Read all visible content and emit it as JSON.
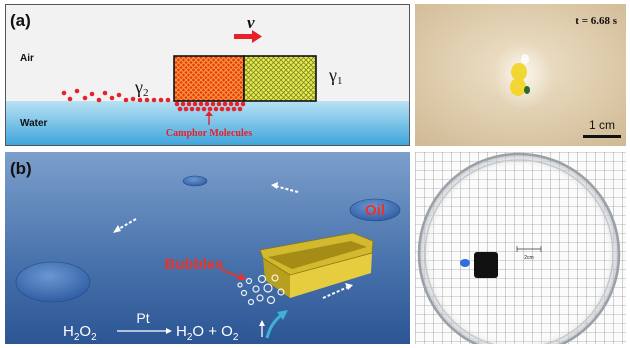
{
  "panel_a": {
    "label": "(a)",
    "velocity_symbol": "v",
    "air_label": "Air",
    "water_label": "Water",
    "gamma_left": "γ",
    "gamma_left_sub": "2",
    "gamma_right": "γ",
    "gamma_right_sub": "1",
    "camphor_label": "Camphor Molecules",
    "colors": {
      "water": "#7fc6e8",
      "red_block": "#e8331a",
      "yellow_block": "#e6e84a",
      "dots": "#e8202a"
    }
  },
  "panel_a_photo": {
    "time_label": "t = 6.68 s",
    "scale_label": "1 cm"
  },
  "panel_b": {
    "label": "(b)",
    "bubbles_label": "Bubbles",
    "oil_label": "Oil",
    "equation": {
      "h2o2_h": "H",
      "h2o2_sub1": "2",
      "h2o2_o": "O",
      "h2o2_sub2": "2",
      "catalyst": "Pt",
      "h2o_h": "H",
      "h2o_sub": "2",
      "h2o_o": "O + O",
      "o2_sub": "2"
    },
    "colors": {
      "water_top": "#5f86b8",
      "water_bottom": "#2f5a97",
      "boat": "#e3cc3a",
      "label_red": "#e8332a"
    }
  },
  "panel_b_photo": {
    "scale_text": "2cm"
  }
}
